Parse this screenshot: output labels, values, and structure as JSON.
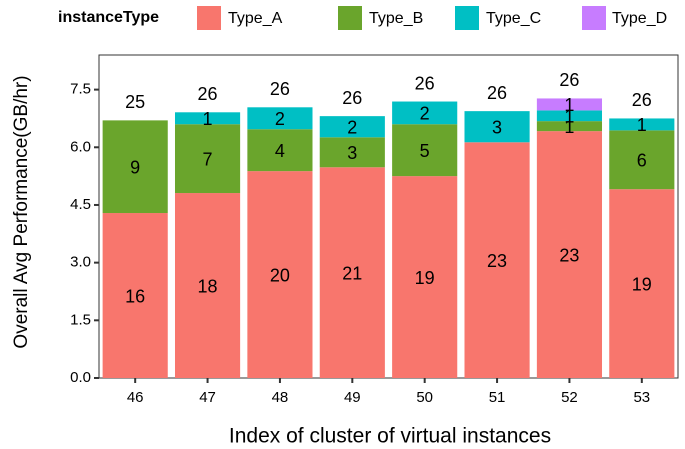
{
  "chart_data": {
    "type": "stacked_bar",
    "x_label": "Index of cluster of virtual instances",
    "y_label": "Overall Avg Performance(GB/hr)",
    "legend_title": "instanceType",
    "categories": [
      "46",
      "47",
      "48",
      "49",
      "50",
      "51",
      "52",
      "53"
    ],
    "series": [
      {
        "name": "Type_A",
        "color": "#F8766D",
        "values": [
          4.29,
          4.81,
          5.38,
          5.48,
          5.25,
          6.13,
          6.42,
          4.91
        ],
        "counts": [
          16,
          18,
          20,
          21,
          19,
          23,
          23,
          19
        ]
      },
      {
        "name": "Type_B",
        "color": "#6AA52C",
        "values": [
          2.41,
          1.79,
          1.09,
          0.78,
          1.35,
          null,
          0.26,
          1.53
        ],
        "counts": [
          9,
          7,
          4,
          3,
          5,
          null,
          1,
          6
        ]
      },
      {
        "name": "Type_C",
        "color": "#00BFC4",
        "values": [
          null,
          0.31,
          0.57,
          0.55,
          0.59,
          0.81,
          0.28,
          0.31
        ],
        "counts": [
          null,
          1,
          2,
          2,
          2,
          3,
          1,
          1
        ]
      },
      {
        "name": "Type_D",
        "color": "#C77CFF",
        "values": [
          null,
          null,
          null,
          null,
          null,
          null,
          0.31,
          null
        ],
        "counts": [
          null,
          null,
          null,
          null,
          null,
          null,
          1,
          null
        ]
      }
    ],
    "total_counts": [
      25,
      26,
      26,
      26,
      26,
      26,
      26,
      26
    ],
    "ylim": [
      0,
      8.4
    ],
    "yticks": [
      {
        "value": 0,
        "label": "0.0"
      },
      {
        "value": 1.5,
        "label": "1.5"
      },
      {
        "value": 3,
        "label": "3.0"
      },
      {
        "value": 4.5,
        "label": "4.5"
      },
      {
        "value": 6,
        "label": "6.0"
      },
      {
        "value": 7.5,
        "label": "7.5"
      }
    ],
    "legend_position": "top"
  }
}
